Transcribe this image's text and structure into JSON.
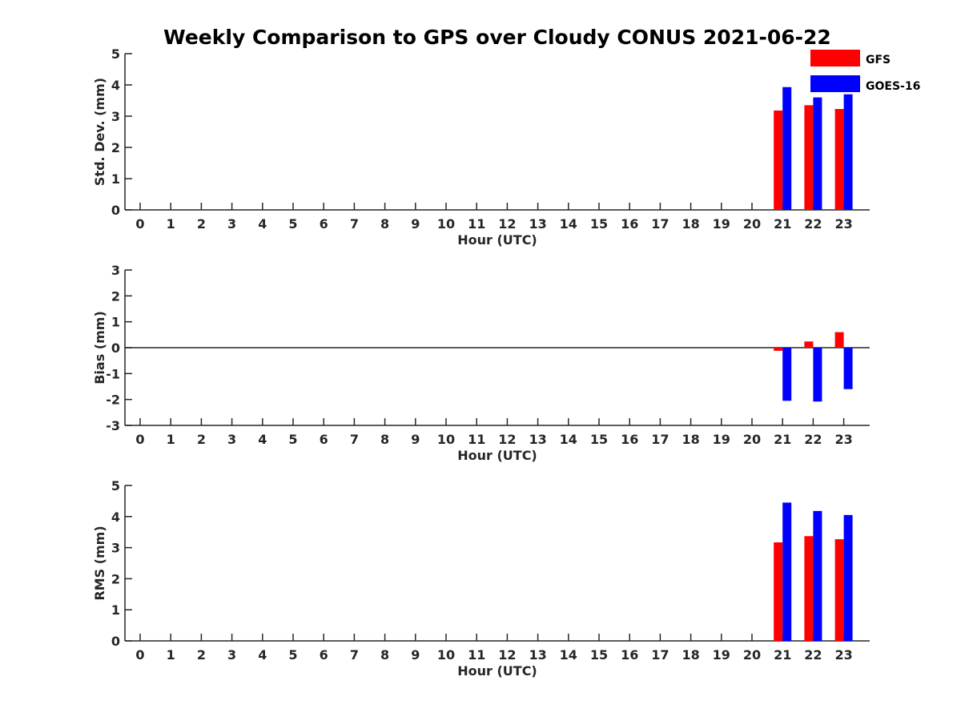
{
  "chart_data": {
    "type": "bar",
    "title": "Weekly Comparison to GPS over Cloudy CONUS 2021-06-22",
    "legend": {
      "placement": "top-right",
      "entries": [
        "GFS",
        "GOES-16"
      ]
    },
    "colors": {
      "GFS": "#ff0000",
      "GOES-16": "#0000ff"
    },
    "categories": [
      "0",
      "1",
      "2",
      "3",
      "4",
      "5",
      "6",
      "7",
      "8",
      "9",
      "10",
      "11",
      "12",
      "13",
      "14",
      "15",
      "16",
      "17",
      "18",
      "19",
      "20",
      "21",
      "22",
      "23"
    ],
    "panels": [
      {
        "id": "std",
        "ylabel": "Std. Dev. (mm)",
        "xlabel": "Hour (UTC)",
        "ylim": [
          0,
          5
        ],
        "yticks": [
          "5",
          "4",
          "3",
          "2",
          "1",
          "0"
        ],
        "series": [
          {
            "name": "GFS",
            "values": [
              null,
              null,
              null,
              null,
              null,
              null,
              null,
              null,
              null,
              null,
              null,
              null,
              null,
              null,
              null,
              null,
              null,
              null,
              null,
              null,
              null,
              3.18,
              3.35,
              3.23
            ]
          },
          {
            "name": "GOES-16",
            "values": [
              null,
              null,
              null,
              null,
              null,
              null,
              null,
              null,
              null,
              null,
              null,
              null,
              null,
              null,
              null,
              null,
              null,
              null,
              null,
              null,
              null,
              3.93,
              3.6,
              3.7
            ]
          }
        ]
      },
      {
        "id": "bias",
        "ylabel": "Bias (mm)",
        "xlabel": "Hour (UTC)",
        "ylim": [
          -3,
          3
        ],
        "yticks": [
          "3",
          "2",
          "1",
          "0",
          "-1",
          "-2",
          "-3"
        ],
        "zero_line": true,
        "series": [
          {
            "name": "GFS",
            "values": [
              null,
              null,
              null,
              null,
              null,
              null,
              null,
              null,
              null,
              null,
              null,
              null,
              null,
              null,
              null,
              null,
              null,
              null,
              null,
              null,
              null,
              -0.12,
              0.24,
              0.6
            ]
          },
          {
            "name": "GOES-16",
            "values": [
              null,
              null,
              null,
              null,
              null,
              null,
              null,
              null,
              null,
              null,
              null,
              null,
              null,
              null,
              null,
              null,
              null,
              null,
              null,
              null,
              null,
              -2.05,
              -2.08,
              -1.6
            ]
          }
        ]
      },
      {
        "id": "rms",
        "ylabel": "RMS (mm)",
        "xlabel": "Hour (UTC)",
        "ylim": [
          0,
          5
        ],
        "yticks": [
          "5",
          "4",
          "3",
          "2",
          "1",
          "0"
        ],
        "series": [
          {
            "name": "GFS",
            "values": [
              null,
              null,
              null,
              null,
              null,
              null,
              null,
              null,
              null,
              null,
              null,
              null,
              null,
              null,
              null,
              null,
              null,
              null,
              null,
              null,
              null,
              3.17,
              3.37,
              3.27
            ]
          },
          {
            "name": "GOES-16",
            "values": [
              null,
              null,
              null,
              null,
              null,
              null,
              null,
              null,
              null,
              null,
              null,
              null,
              null,
              null,
              null,
              null,
              null,
              null,
              null,
              null,
              null,
              4.45,
              4.18,
              4.05
            ]
          }
        ]
      }
    ]
  }
}
